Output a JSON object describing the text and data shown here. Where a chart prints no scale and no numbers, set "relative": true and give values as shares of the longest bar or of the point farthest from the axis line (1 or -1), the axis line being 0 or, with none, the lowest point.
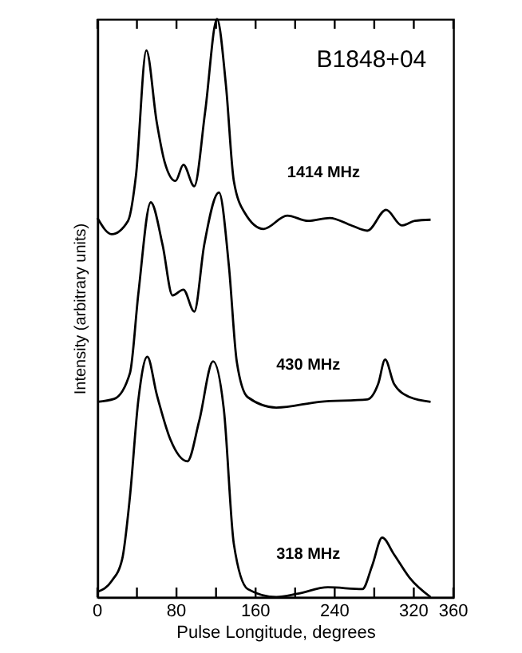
{
  "chart_data": {
    "type": "line",
    "title": "B1848+04",
    "xlabel": "Pulse Longitude, degrees",
    "ylabel": "Intensity (arbitrary units)",
    "relative": true,
    "xlim": [
      0,
      360
    ],
    "xticks": [
      0,
      {
        "value": 40,
        "label": null
      },
      80,
      {
        "value": 120,
        "label": null
      },
      160,
      {
        "value": 200,
        "label": null
      },
      240,
      {
        "value": 280,
        "label": null
      },
      320,
      360
    ],
    "grid": false,
    "legend": false,
    "marker": "none",
    "line_style": "solid",
    "series": [
      {
        "name": "1414 MHz",
        "color": "#000000",
        "x": [
          0,
          14.5,
          31,
          39,
          49.5,
          60,
          68,
          79,
          87,
          98,
          109,
          121,
          130,
          138,
          149,
          168,
          192,
          213,
          235,
          257,
          273,
          292,
          308,
          321,
          337
        ],
        "values": [
          0.656,
          0.628,
          0.651,
          0.729,
          0.946,
          0.822,
          0.753,
          0.72,
          0.748,
          0.711,
          0.84,
          1,
          0.886,
          0.72,
          0.665,
          0.637,
          0.66,
          0.651,
          0.656,
          0.643,
          0.634,
          0.67,
          0.643,
          0.651,
          0.653
        ]
      },
      {
        "name": "430 MHz",
        "color": "#000000",
        "x": [
          0,
          17,
          33,
          41.5,
          54,
          66,
          76,
          87,
          98,
          108,
          123,
          133,
          141,
          152,
          181,
          225,
          273,
          284,
          291,
          300,
          316,
          337
        ],
        "values": [
          0.338,
          0.343,
          0.388,
          0.526,
          0.683,
          0.609,
          0.522,
          0.532,
          0.494,
          0.609,
          0.7,
          0.573,
          0.407,
          0.346,
          0.328,
          0.338,
          0.342,
          0.369,
          0.411,
          0.369,
          0.346,
          0.338
        ]
      },
      {
        "name": "318 MHz",
        "color": "#000000",
        "x": [
          0,
          14.5,
          25,
          33,
          41.5,
          50.5,
          60,
          74,
          91,
          103,
          117,
          128,
          138,
          152,
          181,
          203,
          233,
          268,
          278,
          288,
          300,
          316,
          337
        ],
        "values": [
          0.009,
          0.028,
          0.065,
          0.175,
          0.342,
          0.416,
          0.351,
          0.272,
          0.235,
          0.305,
          0.408,
          0.323,
          0.092,
          0.014,
          0.0,
          0.006,
          0.017,
          0.014,
          0.055,
          0.103,
          0.074,
          0.033,
          0.0
        ]
      }
    ]
  }
}
